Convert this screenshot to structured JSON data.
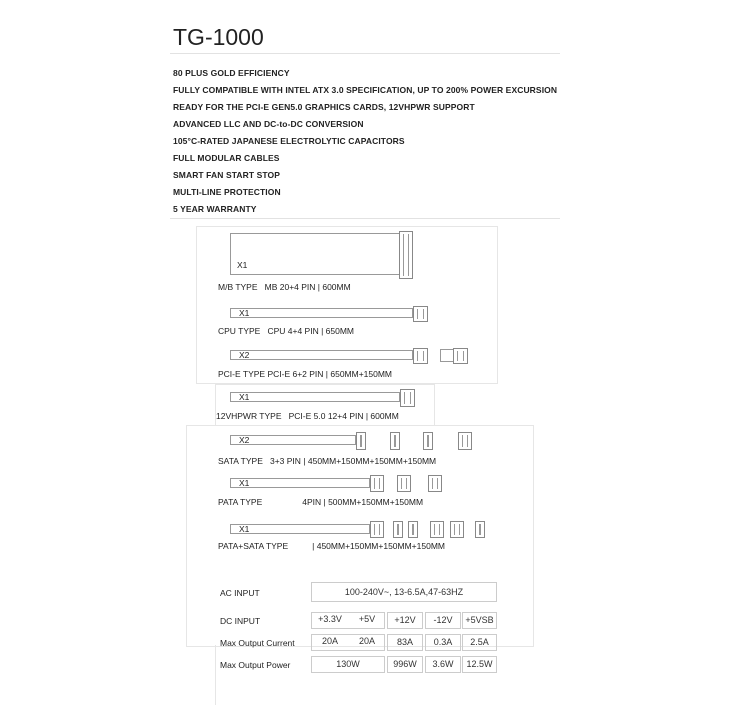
{
  "title": "TG-1000",
  "features": [
    "80 PLUS GOLD EFFICIENCY",
    "FULLY COMPATIBLE WITH INTEL ATX 3.0 SPECIFICATION, UP TO 200% POWER EXCURSION",
    "READY FOR THE PCI-E GEN5.0 GRAPHICS CARDS, 12VHPWR SUPPORT",
    "ADVANCED LLC AND DC-to-DC CONVERSION",
    "105°C-RATED JAPANESE ELECTROLYTIC CAPACITORS",
    "FULL MODULAR CABLES",
    "SMART FAN START STOP",
    "MULTI-LINE PROTECTION",
    "5 YEAR WARRANTY"
  ],
  "cables": {
    "mb": {
      "qty": "X1",
      "type": "M/B TYPE",
      "spec": "MB 20+4 PIN | 600MM"
    },
    "cpu": {
      "qty": "X1",
      "type": "CPU TYPE",
      "spec": "CPU 4+4 PIN | 650MM"
    },
    "pcie": {
      "qty": "X2",
      "type": "PCI-E TYPE",
      "spec": "PCI-E 6+2 PIN | 650MM+150MM"
    },
    "hpwr": {
      "qty": "X1",
      "type": "12VHPWR TYPE",
      "spec": "PCI-E 5.0  12+4 PIN | 600MM"
    },
    "sata": {
      "qty": "X2",
      "type": "SATA TYPE",
      "spec": "3+3 PIN | 450MM+150MM+150MM+150MM"
    },
    "pata": {
      "qty": "X1",
      "type": "PATA TYPE",
      "spec": "4PIN | 500MM+150MM+150MM"
    },
    "patasata": {
      "qty": "X1",
      "type": "PATA+SATA TYPE",
      "spec": "| 450MM+150MM+150MM+150MM"
    }
  },
  "specs": {
    "ac_label": "AC INPUT",
    "ac_value": "100-240V~, 13-6.5A,47-63HZ",
    "dc_label": "DC INPUT",
    "dc": [
      "+3.3V",
      "+5V",
      "+12V",
      "-12V",
      "+5VSB"
    ],
    "current_label": "Max Output Current",
    "current": [
      "20A",
      "20A",
      "83A",
      "0.3A",
      "2.5A"
    ],
    "power_label": "Max Output Power",
    "power": [
      "130W",
      "996W",
      "3.6W",
      "12.5W"
    ]
  }
}
